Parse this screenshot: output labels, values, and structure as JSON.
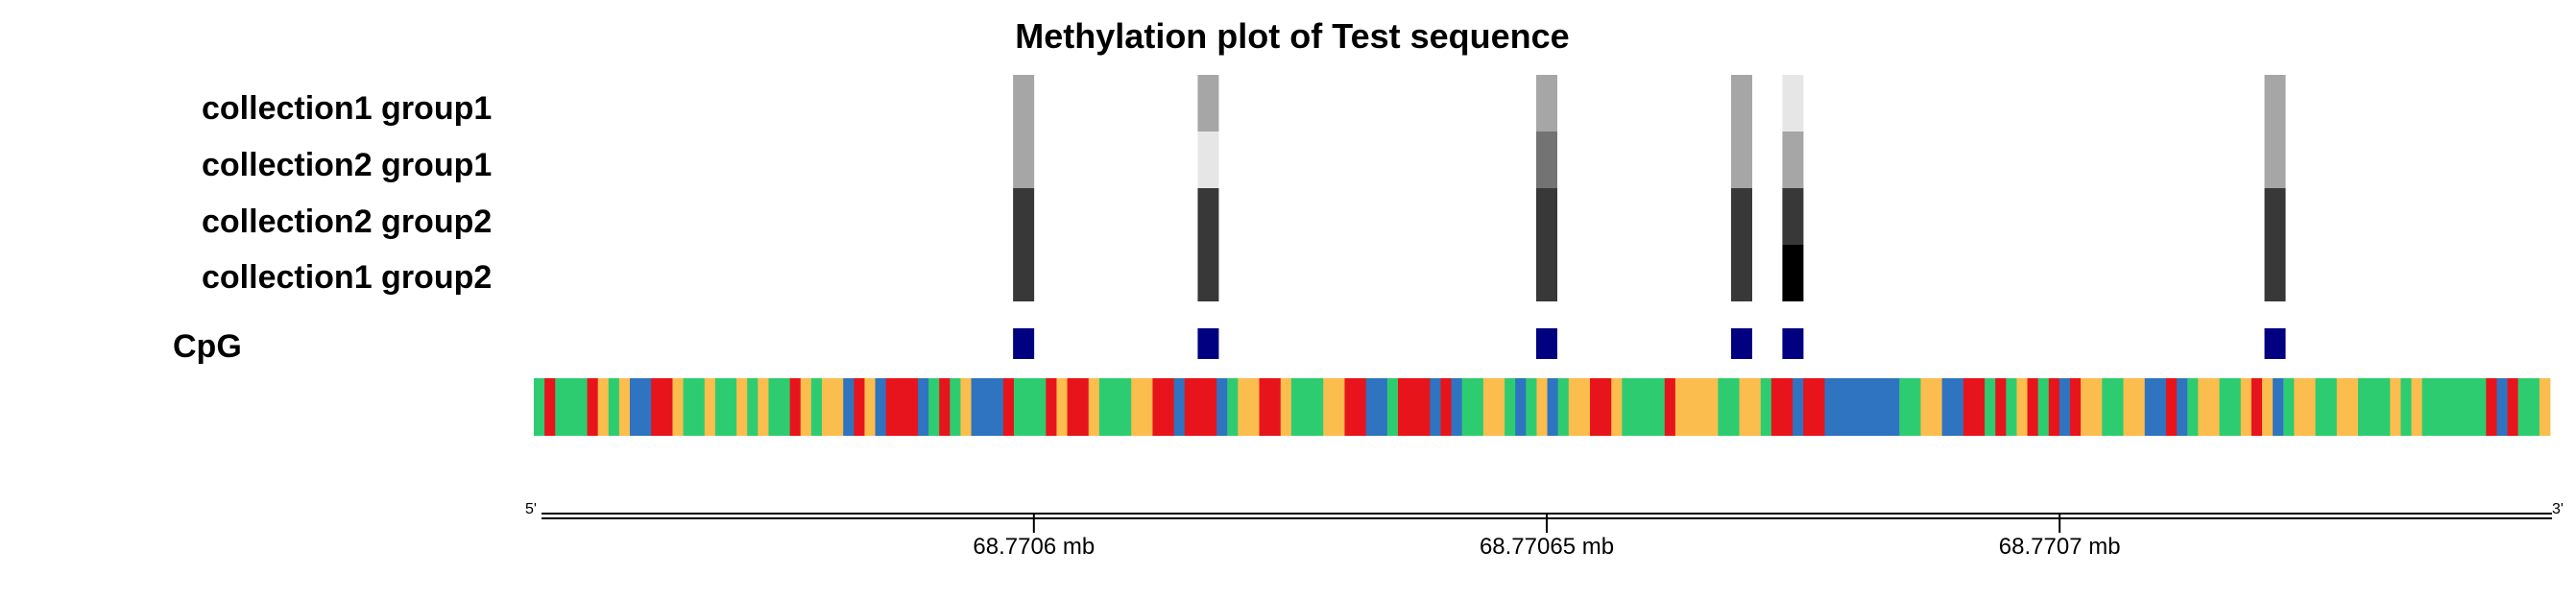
{
  "chart_data": {
    "type": "heatmap",
    "title": "Methylation plot of Test sequence",
    "rows": [
      "collection1 group1",
      "collection2 group1",
      "collection2 group2",
      "collection1 group2"
    ],
    "cpg_label": "CpG",
    "x_unit": "mb",
    "xlim": [
      68.770552,
      68.770748
    ],
    "x_ticks": [
      {
        "value": 68.7706,
        "label": "68.7706 mb"
      },
      {
        "value": 68.77065,
        "label": "68.77065 mb"
      },
      {
        "value": 68.7707,
        "label": "68.7707 mb"
      }
    ],
    "strand_labels": {
      "start": "5'",
      "end": "3'"
    },
    "cpg_sites": [
      {
        "x": 68.770599,
        "methylation": [
          0.35,
          0.35,
          0.78,
          0.78
        ]
      },
      {
        "x": 68.770617,
        "methylation": [
          0.35,
          0.1,
          0.78,
          0.78
        ]
      },
      {
        "x": 68.77065,
        "methylation": [
          0.35,
          0.55,
          0.78,
          0.78
        ]
      },
      {
        "x": 68.770669,
        "methylation": [
          0.35,
          0.35,
          0.78,
          0.78
        ]
      },
      {
        "x": 68.770674,
        "methylation": [
          0.1,
          0.35,
          0.78,
          1.0
        ]
      },
      {
        "x": 68.770721,
        "methylation": [
          0.35,
          0.35,
          0.78,
          0.78
        ]
      }
    ],
    "sequence": "ATAAATGAGCCTTGAAGAAGAGAATGAGGCTGCTTTCATAGCCCTAAATGTTGAAAGGTTCTTTCAGGTTGAAAGGTTCCATTTCTCAAGGACAGCAGGTTGAAAATGGGGAAGGATTCTTCCCCCCCAAGGCCTTATAGTATCTGGAAGGCCTCAGGAAGTGCAGGAAGGAAAGAGAAAAAATCTAAG",
    "base_colors": {
      "A": "#2ecc71",
      "C": "#2f74c0",
      "G": "#fbbd4d",
      "T": "#e8141b"
    },
    "cpg_color": "#000080",
    "methylation_colors": {
      "low": "#ffffff",
      "high": "#000000"
    }
  }
}
